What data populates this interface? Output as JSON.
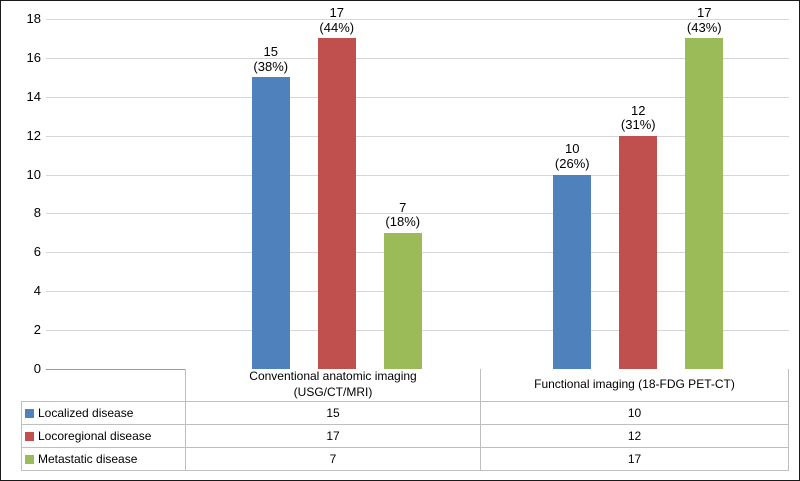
{
  "frame": {
    "background": "#ffffff",
    "border_color": "#1a1a1a"
  },
  "colors": {
    "blue": "#4F81BD",
    "red": "#C0504D",
    "green": "#9BBB59",
    "gridline": "#D6D6D6",
    "axis_line": "#9B9B9B",
    "table_border": "#BFBFBF",
    "text": "#000000"
  },
  "chart_data": {
    "type": "bar",
    "title": "",
    "xlabel": "",
    "ylabel": "",
    "grid": true,
    "legend_position": "data-table-left",
    "ylim": [
      0,
      18
    ],
    "ytick_step": 2,
    "yticks": [
      "0",
      "2",
      "4",
      "6",
      "8",
      "10",
      "12",
      "14",
      "16",
      "18"
    ],
    "categories": [
      "Conventional anatomic imaging (USG/CT/MRI)",
      "Functional imaging (18-FDG PET-CT)"
    ],
    "category_lines": [
      [
        "Conventional anatomic imaging",
        "(USG/CT/MRI)"
      ],
      [
        "Functional imaging (18-FDG PET-CT)"
      ]
    ],
    "series": [
      {
        "name": "Localized disease",
        "color": "#4F81BD",
        "values": [
          15,
          10
        ],
        "labels": [
          [
            "15",
            "(38%)"
          ],
          [
            "10",
            "(26%)"
          ]
        ]
      },
      {
        "name": "Locoregional disease",
        "color": "#C0504D",
        "values": [
          17,
          12
        ],
        "labels": [
          [
            "17",
            "(44%)"
          ],
          [
            "12",
            "(31%)"
          ]
        ]
      },
      {
        "name": "Metastatic disease",
        "color": "#9BBB59",
        "values": [
          7,
          17
        ],
        "labels": [
          [
            "7",
            "(18%)"
          ],
          [
            "17",
            "(43%)"
          ]
        ]
      }
    ]
  }
}
